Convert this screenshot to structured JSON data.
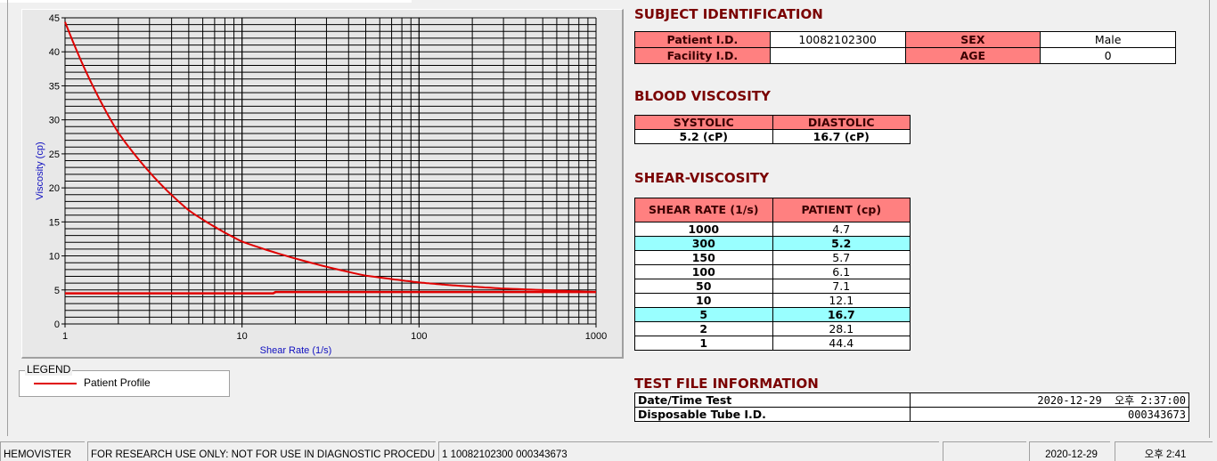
{
  "chart_data": {
    "type": "line",
    "xlabel": "Shear Rate (1/s)",
    "ylabel": "Viscosity (cp)",
    "x_scale": "log",
    "xlim": [
      1,
      1000
    ],
    "ylim": [
      0,
      45
    ],
    "x_ticks": [
      "1",
      "10",
      "100",
      "1000"
    ],
    "y_ticks": [
      "0",
      "5",
      "10",
      "15",
      "20",
      "25",
      "30",
      "35",
      "40",
      "45"
    ],
    "grid": true,
    "series": [
      {
        "name": "Patient Profile",
        "color": "#e00000",
        "x": [
          1,
          2,
          5,
          10,
          50,
          100,
          150,
          300,
          1000
        ],
        "y": [
          44.4,
          28.1,
          16.7,
          12.1,
          7.1,
          6.1,
          5.7,
          5.2,
          4.7
        ]
      },
      {
        "color": "#e00000",
        "x": [
          1,
          15,
          15.5,
          1000
        ],
        "y": [
          4.5,
          4.5,
          4.7,
          4.7
        ]
      }
    ]
  },
  "legend": {
    "title": "LEGEND",
    "items": [
      {
        "label": "Patient Profile",
        "color": "#e00000"
      }
    ]
  },
  "subject": {
    "title": "SUBJECT IDENTIFICATION",
    "patient_id_label": "Patient I.D.",
    "patient_id": "10082102300",
    "sex_label": "SEX",
    "sex": "Male",
    "facility_id_label": "Facility I.D.",
    "facility_id": "",
    "age_label": "AGE",
    "age": "0"
  },
  "blood_viscosity": {
    "title": "BLOOD VISCOSITY",
    "systolic_label": "SYSTOLIC",
    "diastolic_label": "DIASTOLIC",
    "systolic": "5.2 (cP)",
    "diastolic": "16.7 (cP)"
  },
  "shear_viscosity": {
    "title": "SHEAR-VISCOSITY",
    "col_rate": "SHEAR RATE (1/s)",
    "col_patient": "PATIENT (cp)",
    "rows": [
      {
        "rate": "1000",
        "value": "4.7",
        "highlight": false
      },
      {
        "rate": "300",
        "value": "5.2",
        "highlight": true
      },
      {
        "rate": "150",
        "value": "5.7",
        "highlight": false
      },
      {
        "rate": "100",
        "value": "6.1",
        "highlight": false
      },
      {
        "rate": "50",
        "value": "7.1",
        "highlight": false
      },
      {
        "rate": "10",
        "value": "12.1",
        "highlight": false
      },
      {
        "rate": "5",
        "value": "16.7",
        "highlight": true
      },
      {
        "rate": "2",
        "value": "28.1",
        "highlight": false
      },
      {
        "rate": "1",
        "value": "44.4",
        "highlight": false
      }
    ],
    "highlight_color": "#99ffff"
  },
  "test_file": {
    "title": "TEST FILE INFORMATION",
    "datetime_label": "Date/Time Test",
    "datetime": "2020-12-29  오후 2:37:00",
    "tube_label": "Disposable Tube I.D.",
    "tube": "000343673"
  },
  "status_bar": {
    "app": "HEMOVISTER",
    "notice": "FOR RESEARCH USE ONLY: NOT FOR USE IN DIAGNOSTIC PROCEDURES",
    "record": "1  10082102300  000343673",
    "empty": "",
    "date": "2020-12-29",
    "time": "오후 2:41"
  },
  "colors": {
    "header_fill": "#ff8080",
    "title": "#7a0000",
    "axis_label": "#1010c0"
  }
}
